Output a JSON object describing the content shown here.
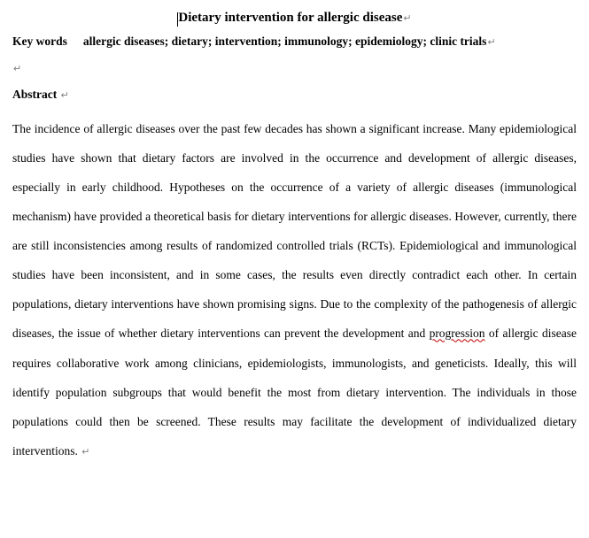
{
  "title": "Dietary intervention for allergic disease",
  "keywords_label": "Key words",
  "keywords_text": "allergic diseases; dietary; intervention; immunology; epidemiology; clinic trials",
  "abstract_heading": "Abstract",
  "abstract_prefix": "The incidence of allergic diseases over the past few decades has shown a significant increase. Many epidemiological studies have shown that dietary factors are involved in the occurrence and development of allergic diseases, especially in early childhood. Hypotheses on the occurrence of a variety of allergic diseases (immunological mechanism) have provided a theoretical basis for dietary interventions for allergic diseases. However, currently, there are still inconsistencies among results of randomized controlled trials (RCTs). Epidemiological and immunological studies have been inconsistent, and in some cases, the results even directly contradict each other. In certain populations, dietary interventions have shown promising signs. Due to the complexity of the pathogenesis of allergic diseases, the issue of whether dietary interventions can prevent the development and ",
  "abstract_wavy_word": "progression",
  "abstract_suffix": " of allergic disease requires collaborative work among clinicians, epidemiologists, immunologists, and geneticists. Ideally, this will identify population subgroups that would benefit the most from dietary intervention. The individuals in those populations could then be screened. These results may facilitate the development of individualized dietary interventions. ",
  "para_mark": "↵",
  "colors": {
    "text": "#000000",
    "mark": "#808080",
    "wavy": "#c00000",
    "background": "#ffffff"
  },
  "fonts": {
    "body_family": "Times New Roman",
    "body_size_pt": 10,
    "title_size_pt": 11,
    "line_height": 2.45
  }
}
